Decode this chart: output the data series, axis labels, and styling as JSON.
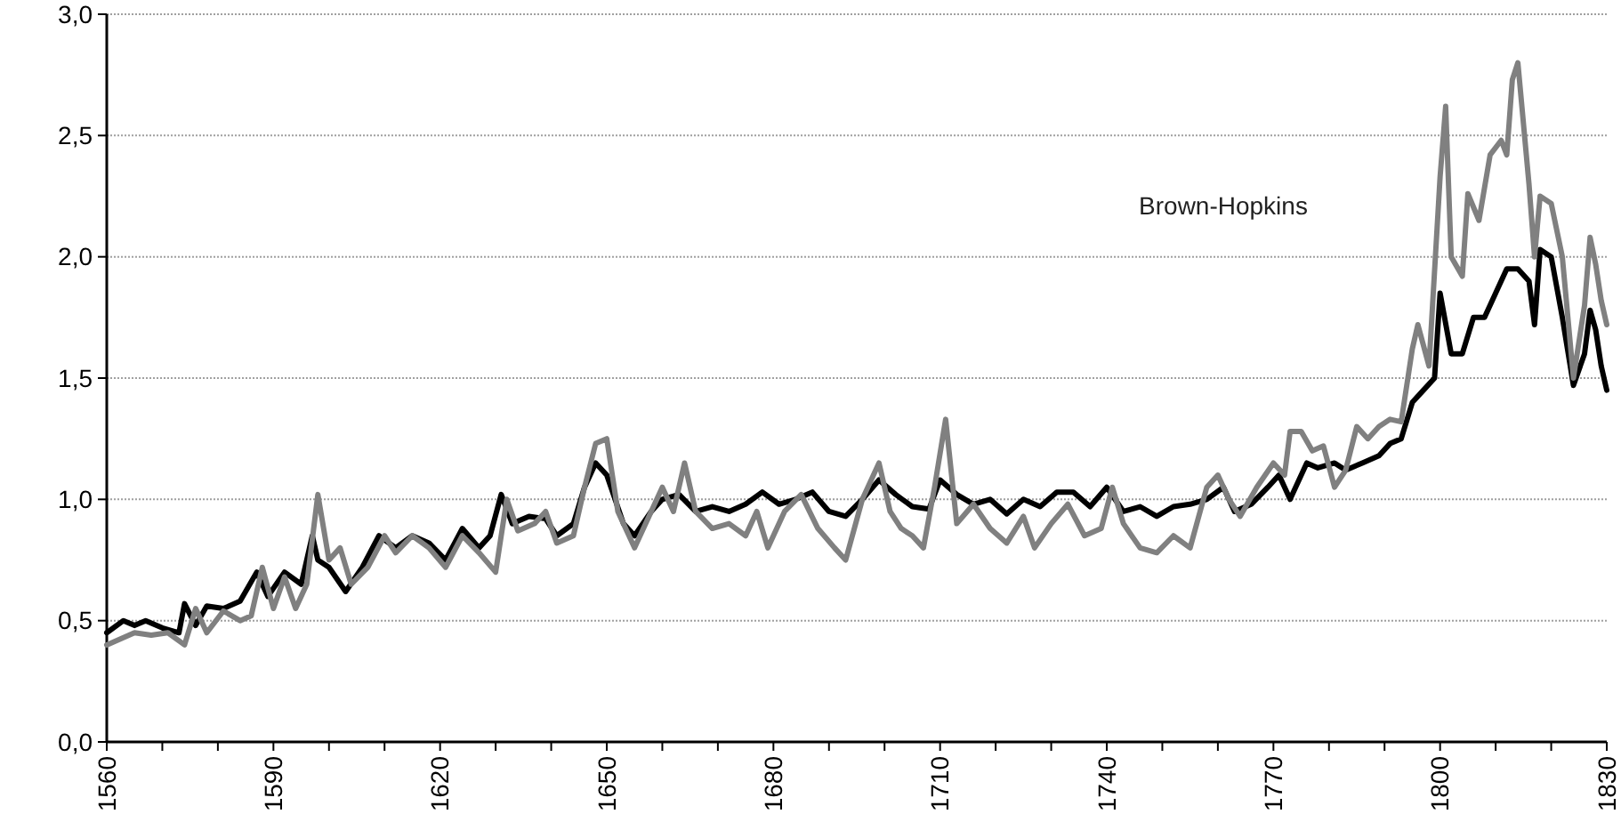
{
  "chart_data": {
    "type": "line",
    "xlim": [
      1560,
      1830
    ],
    "xticks": [
      1560,
      {
        "value": 1570,
        "label": null
      },
      {
        "value": 1580,
        "label": null
      },
      1590,
      {
        "value": 1600,
        "label": null
      },
      {
        "value": 1610,
        "label": null
      },
      1620,
      {
        "value": 1630,
        "label": null
      },
      {
        "value": 1640,
        "label": null
      },
      1650,
      {
        "value": 1660,
        "label": null
      },
      {
        "value": 1670,
        "label": null
      },
      1680,
      {
        "value": 1690,
        "label": null
      },
      {
        "value": 1700,
        "label": null
      },
      1710,
      {
        "value": 1720,
        "label": null
      },
      {
        "value": 1730,
        "label": null
      },
      1740,
      {
        "value": 1750,
        "label": null
      },
      {
        "value": 1760,
        "label": null
      },
      1770,
      {
        "value": 1780,
        "label": null
      },
      {
        "value": 1790,
        "label": null
      },
      1800,
      {
        "value": 1810,
        "label": null
      },
      {
        "value": 1820,
        "label": null
      },
      1830
    ],
    "ylim": [
      0,
      3
    ],
    "yticks": [
      {
        "value": 0,
        "label": "0,0"
      },
      {
        "value": 0.5,
        "label": "0,5"
      },
      {
        "value": 1,
        "label": "1,0"
      },
      {
        "value": 1.5,
        "label": "1,5"
      },
      {
        "value": 2,
        "label": "2,0"
      },
      {
        "value": 2.5,
        "label": "2,5"
      },
      {
        "value": 3,
        "label": "3,0"
      }
    ],
    "grid": "y",
    "marker": "none",
    "line_style": "solid",
    "series": [
      {
        "color": "#000000",
        "x": [
          1560,
          1563,
          1565,
          1567,
          1570,
          1573,
          1574,
          1576,
          1578,
          1581,
          1584,
          1587,
          1589,
          1592,
          1595,
          1597,
          1598,
          1600,
          1603,
          1606,
          1609,
          1612,
          1615,
          1618,
          1621,
          1624,
          1627,
          1629,
          1631,
          1633,
          1636,
          1639,
          1641,
          1644,
          1646,
          1648,
          1650,
          1653,
          1655,
          1658,
          1660,
          1663,
          1666,
          1669,
          1672,
          1675,
          1678,
          1681,
          1684,
          1687,
          1690,
          1693,
          1696,
          1699,
          1702,
          1705,
          1708,
          1710,
          1713,
          1716,
          1719,
          1722,
          1725,
          1728,
          1731,
          1734,
          1737,
          1740,
          1743,
          1746,
          1749,
          1752,
          1755,
          1758,
          1761,
          1763,
          1766,
          1769,
          1771,
          1773,
          1776,
          1778,
          1781,
          1783,
          1786,
          1789,
          1791,
          1793,
          1795,
          1797,
          1799,
          1800,
          1802,
          1804,
          1806,
          1808,
          1810,
          1812,
          1814,
          1816,
          1817,
          1818,
          1820,
          1822,
          1824,
          1826,
          1827,
          1828,
          1829,
          1830
        ],
        "values": [
          0.45,
          0.5,
          0.48,
          0.5,
          0.47,
          0.45,
          0.57,
          0.48,
          0.56,
          0.55,
          0.58,
          0.7,
          0.6,
          0.7,
          0.65,
          0.85,
          0.75,
          0.72,
          0.62,
          0.72,
          0.85,
          0.8,
          0.85,
          0.82,
          0.75,
          0.88,
          0.8,
          0.85,
          1.02,
          0.9,
          0.93,
          0.92,
          0.85,
          0.9,
          1.05,
          1.15,
          1.1,
          0.9,
          0.85,
          0.95,
          1.0,
          1.02,
          0.95,
          0.97,
          0.95,
          0.98,
          1.03,
          0.98,
          1.0,
          1.03,
          0.95,
          0.93,
          1.0,
          1.08,
          1.02,
          0.97,
          0.96,
          1.08,
          1.02,
          0.98,
          1.0,
          0.94,
          1.0,
          0.97,
          1.03,
          1.03,
          0.97,
          1.05,
          0.95,
          0.97,
          0.93,
          0.97,
          0.98,
          1.0,
          1.05,
          0.95,
          0.98,
          1.05,
          1.1,
          1.0,
          1.15,
          1.13,
          1.15,
          1.12,
          1.15,
          1.18,
          1.23,
          1.25,
          1.4,
          1.45,
          1.5,
          1.85,
          1.6,
          1.6,
          1.75,
          1.75,
          1.85,
          1.95,
          1.95,
          1.9,
          1.72,
          2.03,
          2.0,
          1.75,
          1.47,
          1.6,
          1.78,
          1.7,
          1.55,
          1.45
        ]
      },
      {
        "name": "Brown-Hopkins",
        "color": "#808080",
        "x": [
          1560,
          1563,
          1565,
          1568,
          1571,
          1574,
          1576,
          1578,
          1581,
          1584,
          1586,
          1588,
          1590,
          1592,
          1594,
          1596,
          1598,
          1600,
          1602,
          1604,
          1607,
          1610,
          1612,
          1615,
          1618,
          1621,
          1624,
          1627,
          1630,
          1632,
          1634,
          1637,
          1639,
          1641,
          1644,
          1646,
          1648,
          1650,
          1652,
          1655,
          1658,
          1660,
          1662,
          1664,
          1666,
          1669,
          1672,
          1675,
          1677,
          1679,
          1682,
          1685,
          1688,
          1691,
          1693,
          1696,
          1699,
          1701,
          1703,
          1705,
          1707,
          1709,
          1711,
          1713,
          1716,
          1719,
          1722,
          1725,
          1727,
          1730,
          1733,
          1736,
          1739,
          1741,
          1743,
          1746,
          1749,
          1752,
          1755,
          1758,
          1760,
          1762,
          1764,
          1767,
          1770,
          1772,
          1773,
          1775,
          1777,
          1779,
          1781,
          1783,
          1785,
          1787,
          1789,
          1791,
          1793,
          1795,
          1796,
          1798,
          1800,
          1801,
          1802,
          1804,
          1805,
          1807,
          1809,
          1811,
          1812,
          1813,
          1814,
          1816,
          1817,
          1818,
          1820,
          1822,
          1824,
          1826,
          1827,
          1828,
          1829,
          1830
        ],
        "values": [
          0.4,
          0.43,
          0.45,
          0.44,
          0.45,
          0.4,
          0.55,
          0.45,
          0.54,
          0.5,
          0.52,
          0.72,
          0.55,
          0.68,
          0.55,
          0.65,
          1.02,
          0.75,
          0.8,
          0.65,
          0.72,
          0.85,
          0.78,
          0.85,
          0.8,
          0.72,
          0.85,
          0.78,
          0.7,
          1.0,
          0.87,
          0.9,
          0.95,
          0.82,
          0.85,
          1.05,
          1.23,
          1.25,
          0.95,
          0.8,
          0.95,
          1.05,
          0.95,
          1.15,
          0.95,
          0.88,
          0.9,
          0.85,
          0.95,
          0.8,
          0.95,
          1.02,
          0.88,
          0.8,
          0.75,
          1.0,
          1.15,
          0.95,
          0.88,
          0.85,
          0.8,
          1.05,
          1.33,
          0.9,
          0.98,
          0.88,
          0.82,
          0.93,
          0.8,
          0.9,
          0.98,
          0.85,
          0.88,
          1.05,
          0.9,
          0.8,
          0.78,
          0.85,
          0.8,
          1.05,
          1.1,
          1.0,
          0.93,
          1.05,
          1.15,
          1.1,
          1.28,
          1.28,
          1.2,
          1.22,
          1.05,
          1.12,
          1.3,
          1.25,
          1.3,
          1.33,
          1.32,
          1.62,
          1.72,
          1.55,
          2.33,
          2.62,
          2.0,
          1.92,
          2.26,
          2.15,
          2.42,
          2.48,
          2.42,
          2.73,
          2.8,
          2.3,
          2.0,
          2.25,
          2.22,
          2.0,
          1.5,
          1.8,
          2.08,
          1.97,
          1.82,
          1.72
        ]
      }
    ]
  }
}
